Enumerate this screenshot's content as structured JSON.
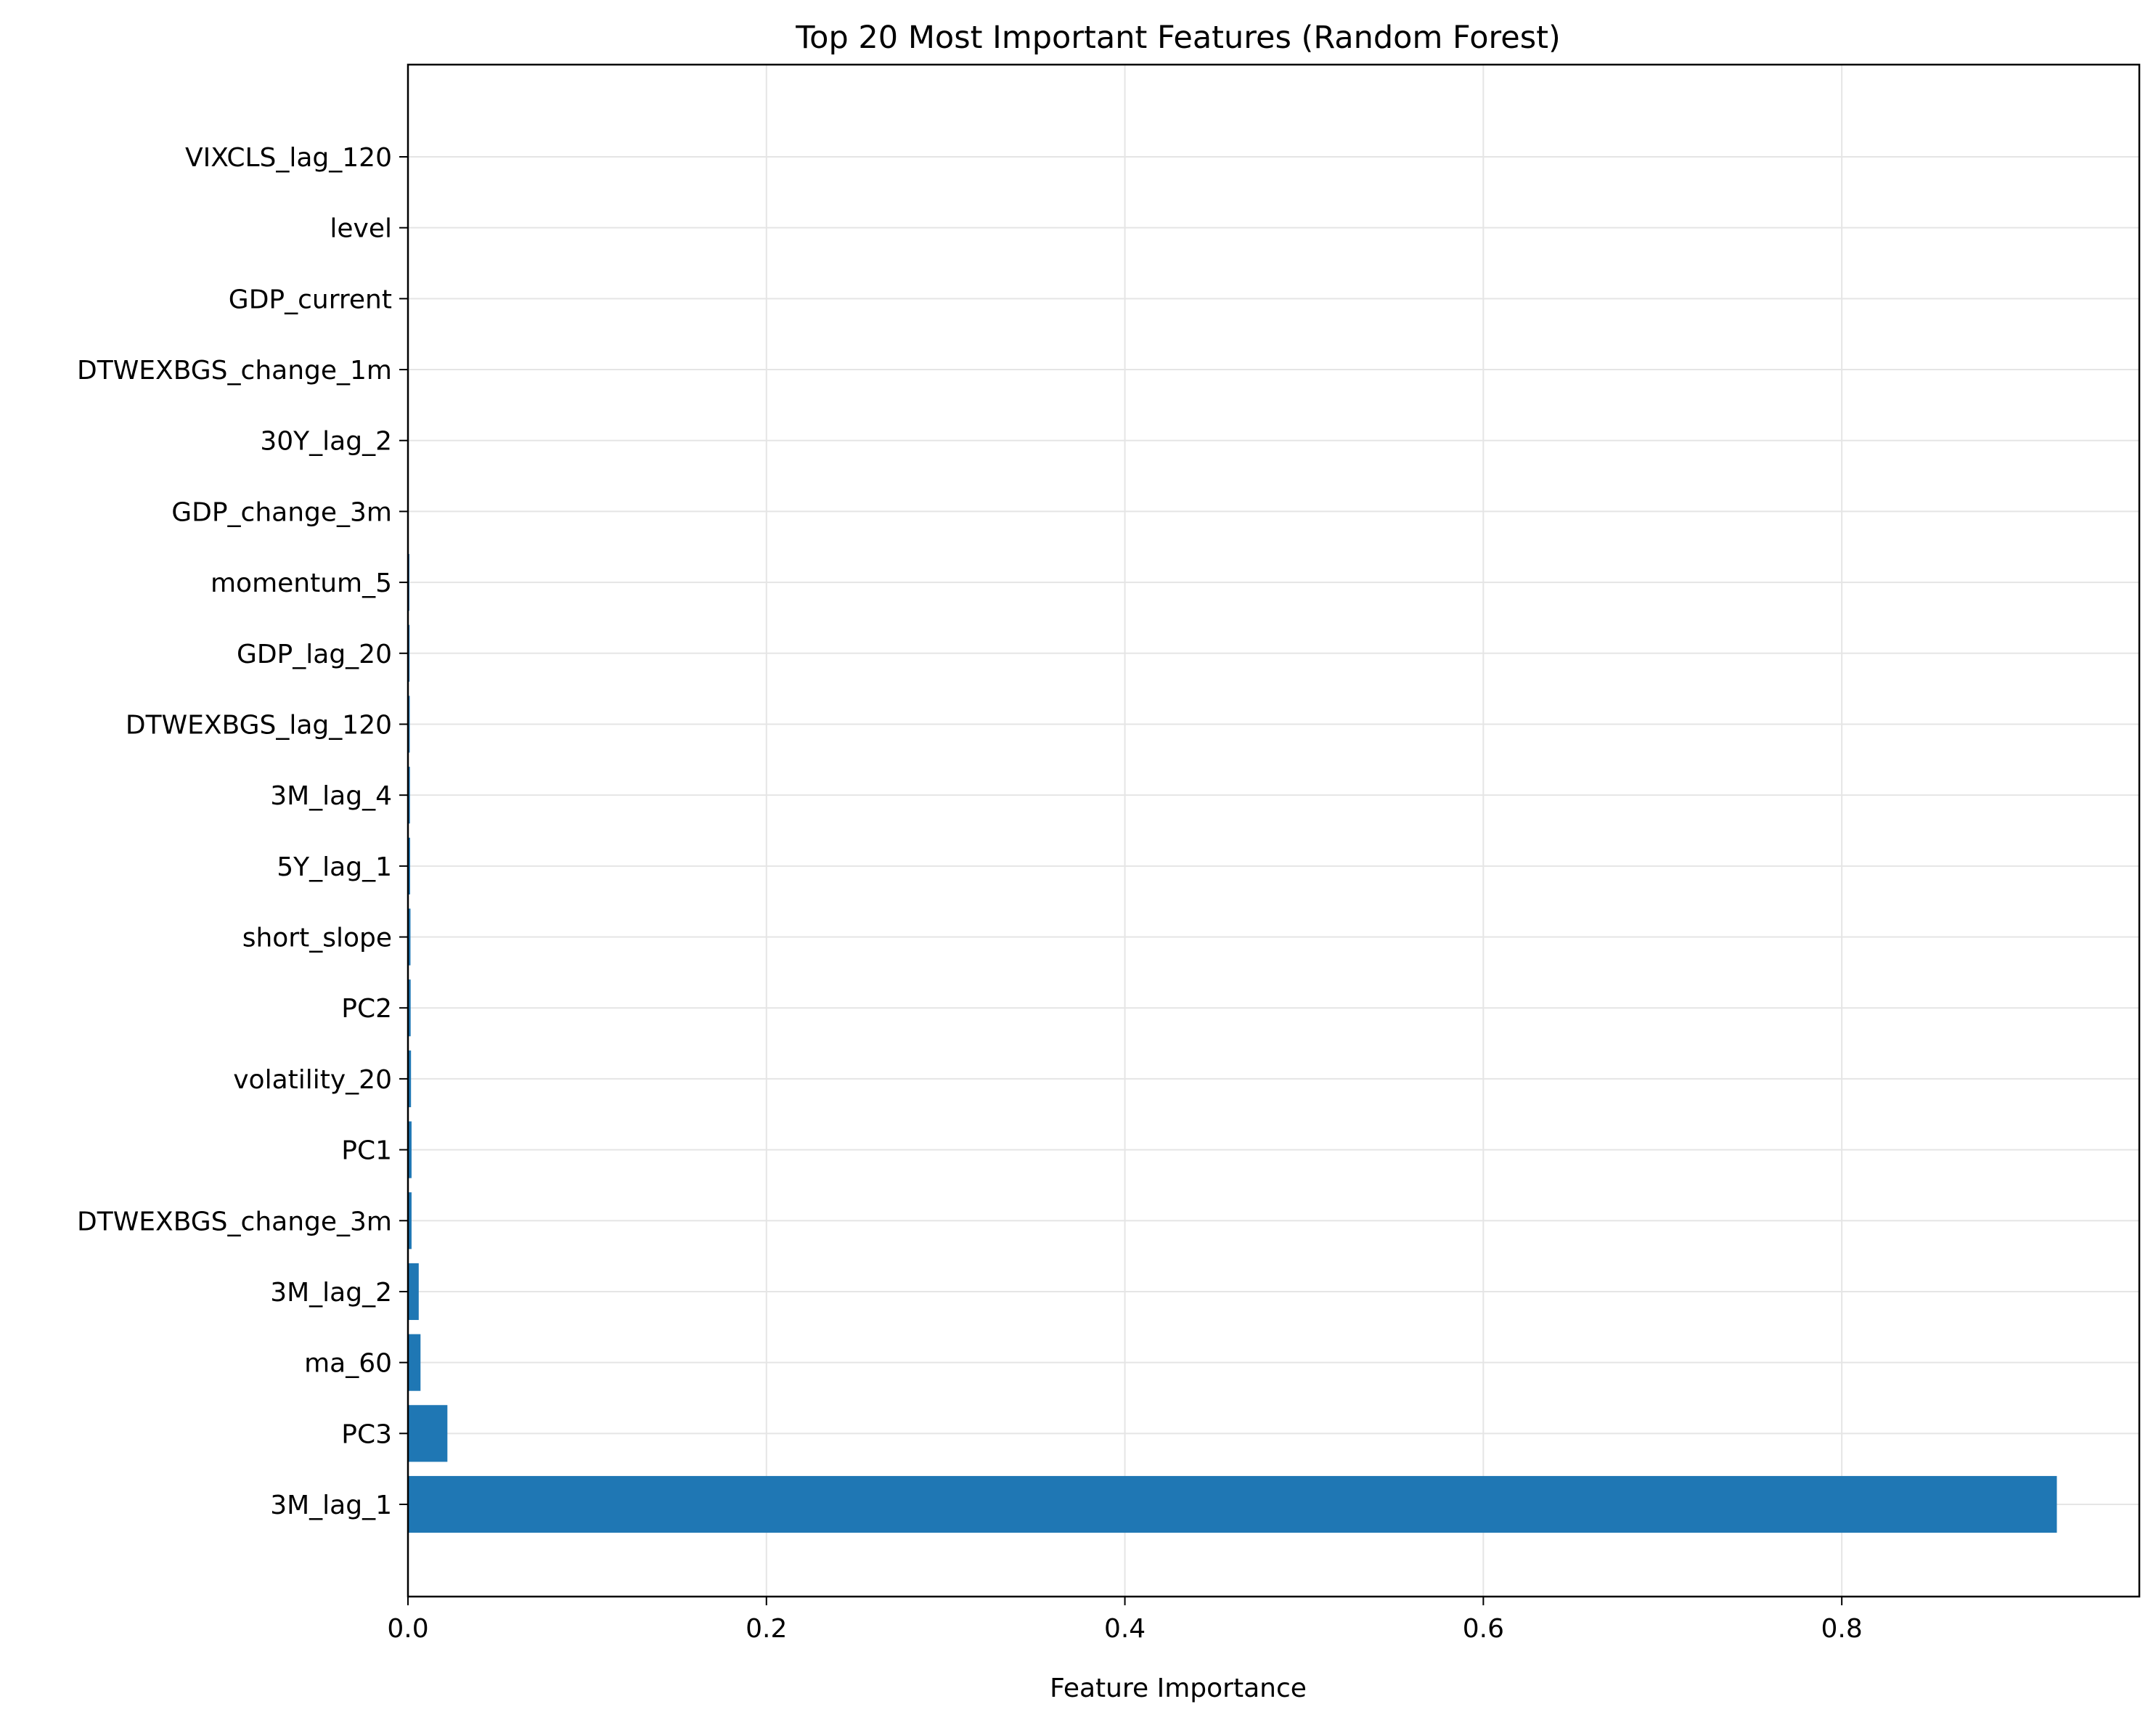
{
  "chart_data": {
    "type": "bar",
    "orientation": "horizontal",
    "title": "Top 20 Most Important Features (Random Forest)",
    "xlabel": "Feature Importance",
    "ylabel": "",
    "xlim": [
      0,
      0.966
    ],
    "xticks": [
      0.0,
      0.2,
      0.4,
      0.6,
      0.8
    ],
    "xtick_labels": [
      "0.0",
      "0.2",
      "0.4",
      "0.6",
      "0.8"
    ],
    "grid": true,
    "legend": "none",
    "bar_color": "#1f77b4",
    "grid_color": "#e5e5e5",
    "categories": [
      "3M_lag_1",
      "PC3",
      "ma_60",
      "3M_lag_2",
      "DTWEXBGS_change_3m",
      "PC1",
      "volatility_20",
      "PC2",
      "short_slope",
      "5Y_lag_1",
      "3M_lag_4",
      "DTWEXBGS_lag_120",
      "GDP_lag_20",
      "momentum_5",
      "GDP_change_3m",
      "30Y_lag_2",
      "DTWEXBGS_change_1m",
      "GDP_current",
      "level",
      "VIXCLS_lag_120"
    ],
    "values": [
      0.92,
      0.022,
      0.007,
      0.006,
      0.002,
      0.002,
      0.0017,
      0.0015,
      0.0014,
      0.0012,
      0.0011,
      0.001,
      0.0009,
      0.0008,
      0.0004,
      0.0003,
      0.0002,
      0.0002,
      0.0001,
      0.0001
    ]
  }
}
